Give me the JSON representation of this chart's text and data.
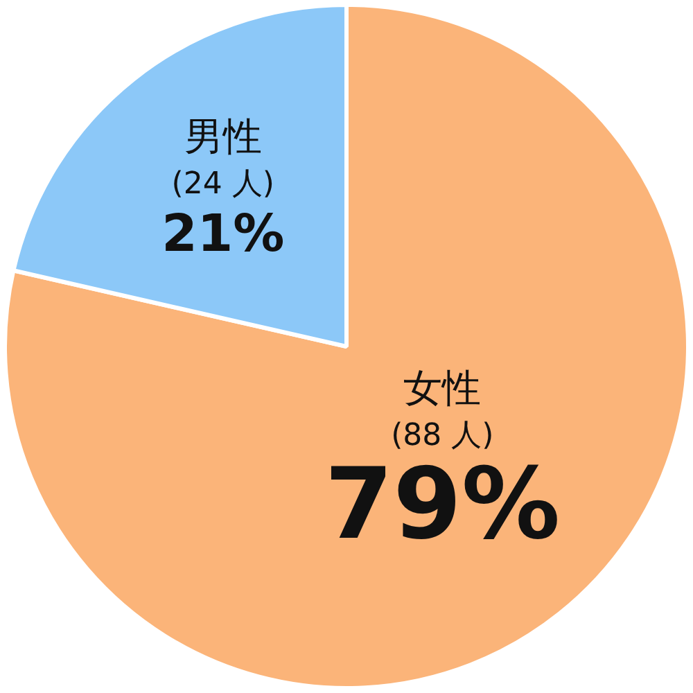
{
  "chart_data": {
    "type": "pie",
    "categories": [
      "女性",
      "男性"
    ],
    "values": [
      88,
      24
    ],
    "colors": [
      "#fbb479",
      "#8cc8f8"
    ],
    "value_labels": [
      "(88 人)\n79%",
      "(24 人)\n21%"
    ],
    "legend": false
  }
}
